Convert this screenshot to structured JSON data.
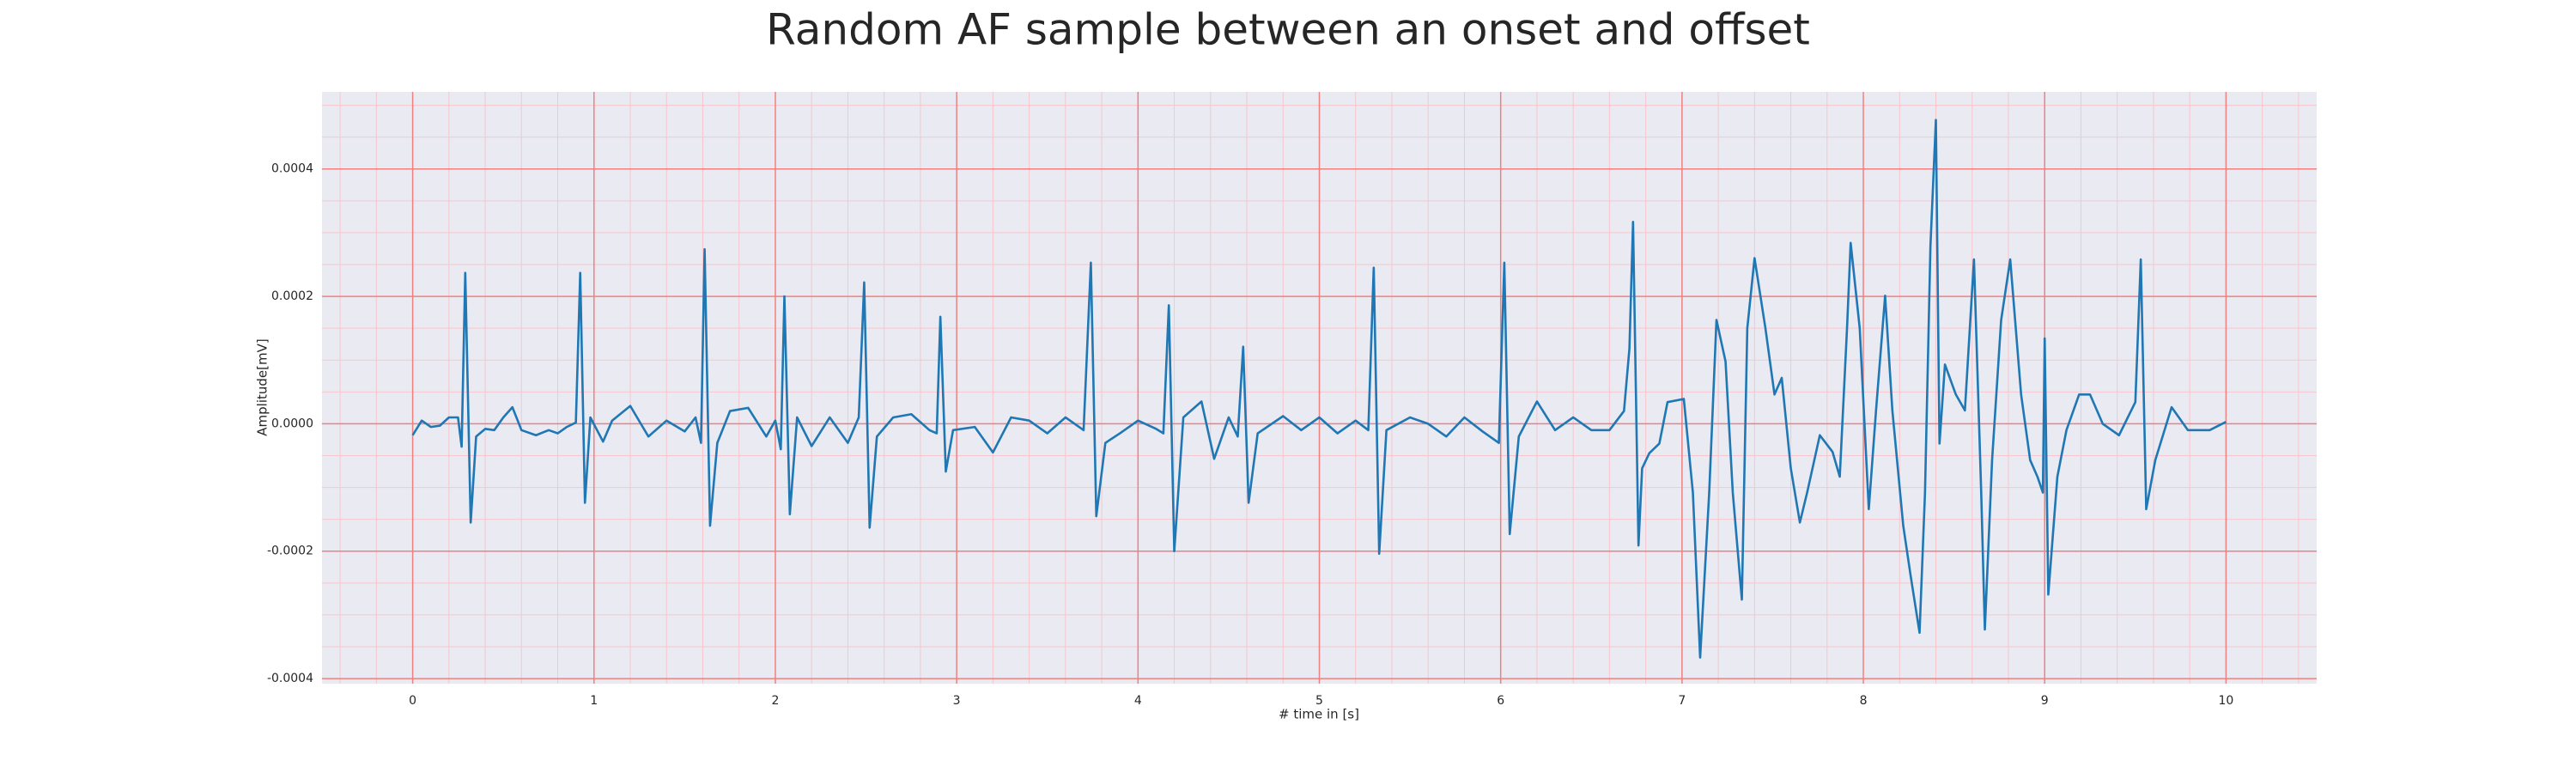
{
  "chart_data": {
    "type": "line",
    "title": "Random AF sample between an onset and offset",
    "xlabel": "# time in [s]",
    "ylabel": "Amplitude[mV]",
    "color": "#1f77b4",
    "background": "#eaeaf2",
    "grid": true,
    "grid_color": "#f08080",
    "minor_grid": true,
    "minor_grid_color": "#f7c6cc",
    "xlim": [
      -0.5,
      10.5
    ],
    "ylim": [
      -0.000408,
      0.000521
    ],
    "xticks": [
      0,
      1,
      2,
      3,
      4,
      5,
      6,
      7,
      8,
      9,
      10
    ],
    "yticks": [
      -0.0004,
      -0.0002,
      {
        "value": 0,
        "label": "0.0000"
      },
      0.0002,
      0.0004
    ],
    "xminorticks": [
      -0.4,
      -0.2,
      0.2,
      0.4,
      0.6,
      0.8,
      1.2,
      1.4,
      1.6,
      1.8,
      2.2,
      2.4,
      2.6,
      2.8,
      3.2,
      3.4,
      3.6,
      3.8,
      4.2,
      4.4,
      4.6,
      4.8,
      5.2,
      5.4,
      5.6,
      5.8,
      6.2,
      6.4,
      6.6,
      6.8,
      7.2,
      7.4,
      7.6,
      7.8,
      8.2,
      8.4,
      8.6,
      8.8,
      9.2,
      9.4,
      9.6,
      9.8,
      10.2,
      10.4
    ],
    "yminorticks": [
      -0.00035,
      -0.0003,
      -0.00025,
      -0.00015,
      -0.0001,
      -5e-05,
      5e-05,
      0.0001,
      0.00015,
      0.00025,
      0.0003,
      0.00035,
      0.00045,
      0.0005
    ],
    "x": [
      0,
      0.05,
      0.1,
      0.15,
      0.2,
      0.25,
      0.27,
      0.29,
      0.32,
      0.35,
      0.4,
      0.45,
      0.5,
      0.55,
      0.6,
      0.68,
      0.75,
      0.8,
      0.85,
      0.9,
      0.924,
      0.95,
      0.98,
      1.05,
      1.1,
      1.2,
      1.3,
      1.4,
      1.5,
      1.56,
      1.59,
      1.61,
      1.64,
      1.68,
      1.75,
      1.85,
      1.95,
      2.0,
      2.03,
      2.05,
      2.08,
      2.12,
      2.2,
      2.3,
      2.4,
      2.46,
      2.49,
      2.52,
      2.56,
      2.65,
      2.75,
      2.85,
      2.89,
      2.91,
      2.94,
      2.98,
      3.1,
      3.2,
      3.3,
      3.4,
      3.5,
      3.6,
      3.7,
      3.74,
      3.77,
      3.82,
      3.9,
      4.0,
      4.1,
      4.14,
      4.17,
      4.2,
      4.25,
      4.35,
      4.42,
      4.5,
      4.55,
      4.58,
      4.61,
      4.66,
      4.8,
      4.9,
      5.0,
      5.1,
      5.2,
      5.27,
      5.3,
      5.33,
      5.37,
      5.5,
      5.6,
      5.7,
      5.8,
      5.9,
      5.99,
      6.02,
      6.05,
      6.1,
      6.2,
      6.3,
      6.4,
      6.5,
      6.6,
      6.68,
      6.71,
      6.73,
      6.76,
      6.78,
      6.82,
      6.875,
      6.92,
      7.01,
      7.06,
      7.1,
      7.15,
      7.19,
      7.24,
      7.28,
      7.33,
      7.36,
      7.4,
      7.46,
      7.51,
      7.55,
      7.6,
      7.65,
      7.69,
      7.76,
      7.83,
      7.87,
      7.91,
      7.93,
      7.98,
      8.03,
      8.07,
      8.12,
      8.16,
      8.22,
      8.26,
      8.31,
      8.34,
      8.37,
      8.4,
      8.42,
      8.45,
      8.51,
      8.56,
      8.61,
      8.65,
      8.67,
      8.71,
      8.76,
      8.81,
      8.87,
      8.92,
      8.96,
      8.99,
      9.0,
      9.02,
      9.07,
      9.12,
      9.19,
      9.25,
      9.32,
      9.41,
      9.5,
      9.53,
      9.56,
      9.61,
      9.7,
      9.79,
      9.91,
      10.0
    ],
    "values": [
      -1.8e-05,
      5e-06,
      -5e-06,
      -3e-06,
      1e-05,
      1e-05,
      -3.6e-05,
      0.000237,
      -0.000155,
      -2e-05,
      -8e-06,
      -1e-05,
      1e-05,
      2.6e-05,
      -1e-05,
      -1.8e-05,
      -1e-05,
      -1.5e-05,
      -5e-06,
      2e-06,
      0.000237,
      -0.000124,
      1e-05,
      -2.8e-05,
      5e-06,
      2.8e-05,
      -2e-05,
      5e-06,
      -1.2e-05,
      1e-05,
      -3e-05,
      0.000274,
      -0.00016,
      -3e-05,
      2e-05,
      2.5e-05,
      -2e-05,
      5e-06,
      -4e-05,
      0.0002,
      -0.000142,
      1e-05,
      -3.5e-05,
      1e-05,
      -3e-05,
      1e-05,
      0.000222,
      -0.000163,
      -2e-05,
      1e-05,
      1.5e-05,
      -1e-05,
      -1.5e-05,
      0.000168,
      -7.5e-05,
      -1e-05,
      -5e-06,
      -4.5e-05,
      1e-05,
      5e-06,
      -1.5e-05,
      1e-05,
      -1e-05,
      0.000253,
      -0.000145,
      -3e-05,
      -1.5e-05,
      5e-06,
      -8e-06,
      -1.5e-05,
      0.000186,
      -0.0002,
      1e-05,
      3.5e-05,
      -5.5e-05,
      1e-05,
      -2e-05,
      0.000121,
      -0.000124,
      -1.5e-05,
      1.2e-05,
      -1e-05,
      1e-05,
      -1.5e-05,
      5e-06,
      -1e-05,
      0.000245,
      -0.000204,
      -1e-05,
      1e-05,
      0.0,
      -2e-05,
      1e-05,
      -1.2e-05,
      -3e-05,
      0.000253,
      -0.000173,
      -2e-05,
      3.5e-05,
      -1e-05,
      1e-05,
      -1e-05,
      -1e-05,
      2e-05,
      0.000118,
      0.000317,
      -0.000191,
      -7e-05,
      -4.6e-05,
      -3.1e-05,
      3.4e-05,
      3.9e-05,
      -0.000108,
      -0.000367,
      -0.000108,
      0.000163,
      9.8e-05,
      -0.000108,
      -0.000276,
      0.00015,
      0.00026,
      0.00015,
      4.6e-05,
      7.2e-05,
      -7e-05,
      -0.000155,
      -0.000108,
      -1.8e-05,
      -4.4e-05,
      -8.3e-05,
      0.00015,
      0.000284,
      0.00015,
      -0.000134,
      2.1e-05,
      0.000201,
      2.1e-05,
      -0.00016,
      -0.000237,
      -0.000328,
      -0.000108,
      0.000279,
      0.000477,
      -3.1e-05,
      9.3e-05,
      4.6e-05,
      2.1e-05,
      0.000258,
      -0.000108,
      -0.000323,
      -5.7e-05,
      0.000163,
      0.000258,
      4.6e-05,
      -5.7e-05,
      -8.3e-05,
      -0.000108,
      0.000134,
      -0.000268,
      -8.3e-05,
      -1e-05,
      4.6e-05,
      4.6e-05,
      0.0,
      -1.8e-05,
      3.4e-05,
      0.000258,
      -0.000134,
      -5.7e-05,
      2.6e-05,
      -1e-05,
      -1e-05,
      3e-06
    ]
  }
}
